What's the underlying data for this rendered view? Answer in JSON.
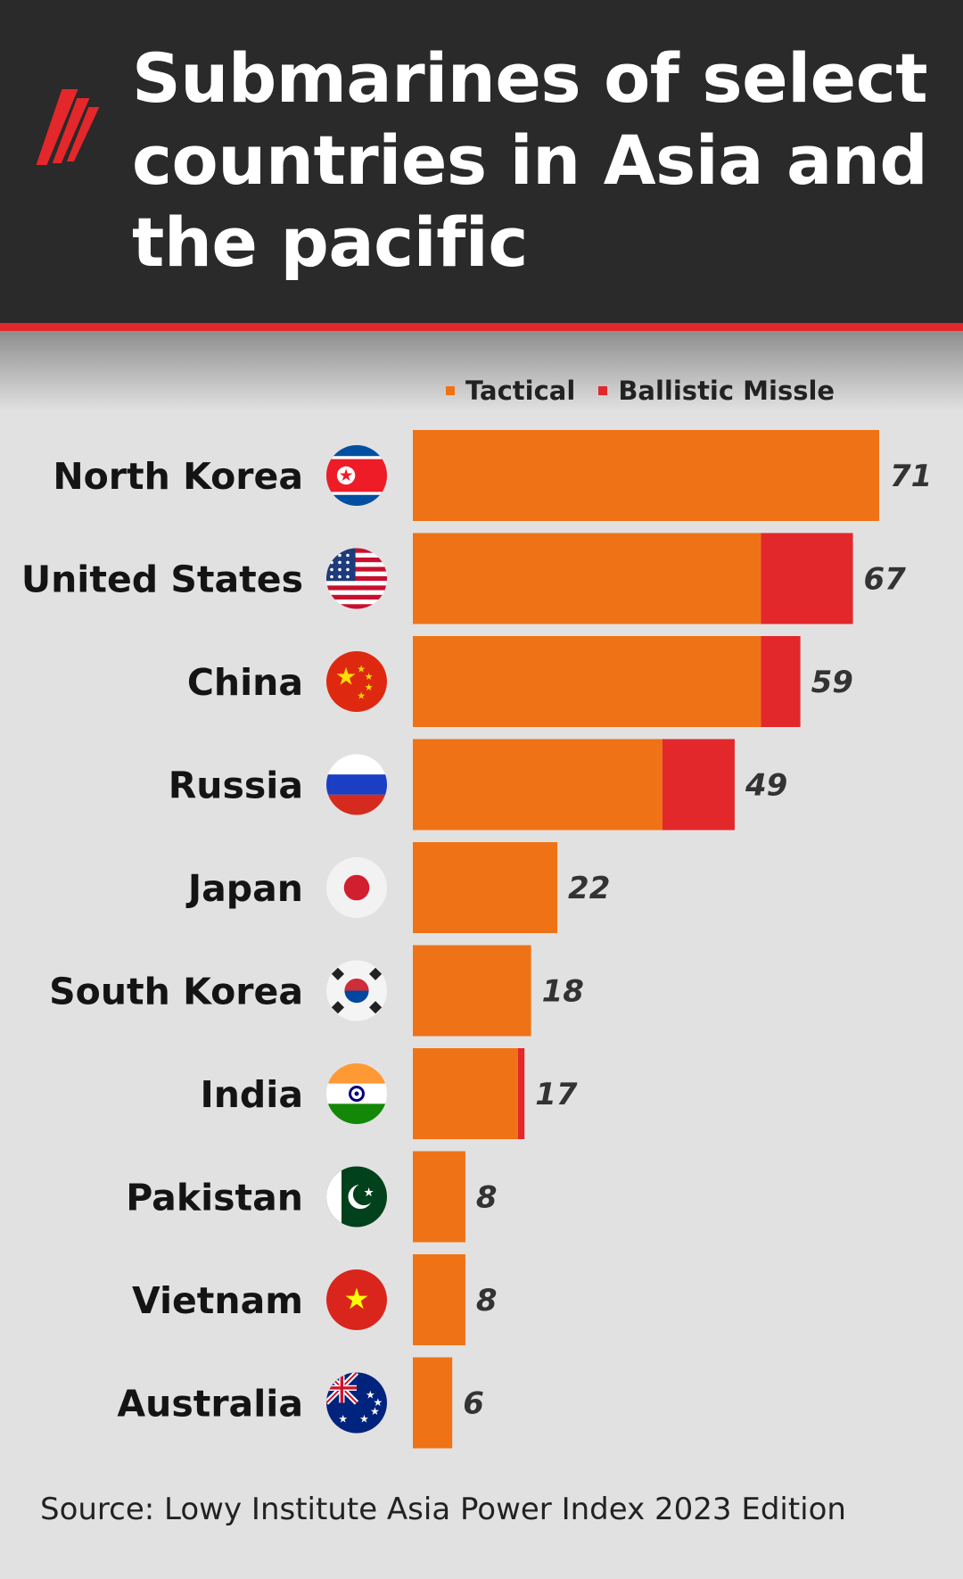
{
  "header": {
    "title": "Submarines of select countries in Asia and the pacific",
    "logo_icon": "sbs-logo-icon",
    "accent_color": "#e4272b"
  },
  "legend": {
    "tactical_label": "Tactical",
    "ballistic_label": "Ballistic Missle"
  },
  "colors": {
    "tactical": "#ef7316",
    "ballistic": "#e2282b"
  },
  "chart_data": {
    "type": "bar",
    "orientation": "horizontal",
    "stacked": true,
    "title": "Submarines of select countries in Asia and the pacific",
    "categories": [
      "North Korea",
      "United States",
      "China",
      "Russia",
      "Japan",
      "South Korea",
      "India",
      "Pakistan",
      "Vietnam",
      "Australia"
    ],
    "totals": [
      71,
      67,
      59,
      49,
      22,
      18,
      17,
      8,
      8,
      6
    ],
    "series": [
      {
        "name": "Tactical",
        "values": [
          71,
          53,
          53,
          38,
          22,
          18,
          16,
          8,
          8,
          6
        ]
      },
      {
        "name": "Ballistic Missle",
        "values": [
          0,
          14,
          6,
          11,
          0,
          0,
          1,
          0,
          0,
          0
        ]
      }
    ],
    "xlim": [
      0,
      71
    ],
    "grid": false,
    "legend_position": "top",
    "flags": [
      "north-korea-flag-icon",
      "usa-flag-icon",
      "china-flag-icon",
      "russia-flag-icon",
      "japan-flag-icon",
      "south-korea-flag-icon",
      "india-flag-icon",
      "pakistan-flag-icon",
      "vietnam-flag-icon",
      "australia-flag-icon"
    ]
  },
  "source": "Source: Lowy Institute Asia Power Index 2023 Edition"
}
